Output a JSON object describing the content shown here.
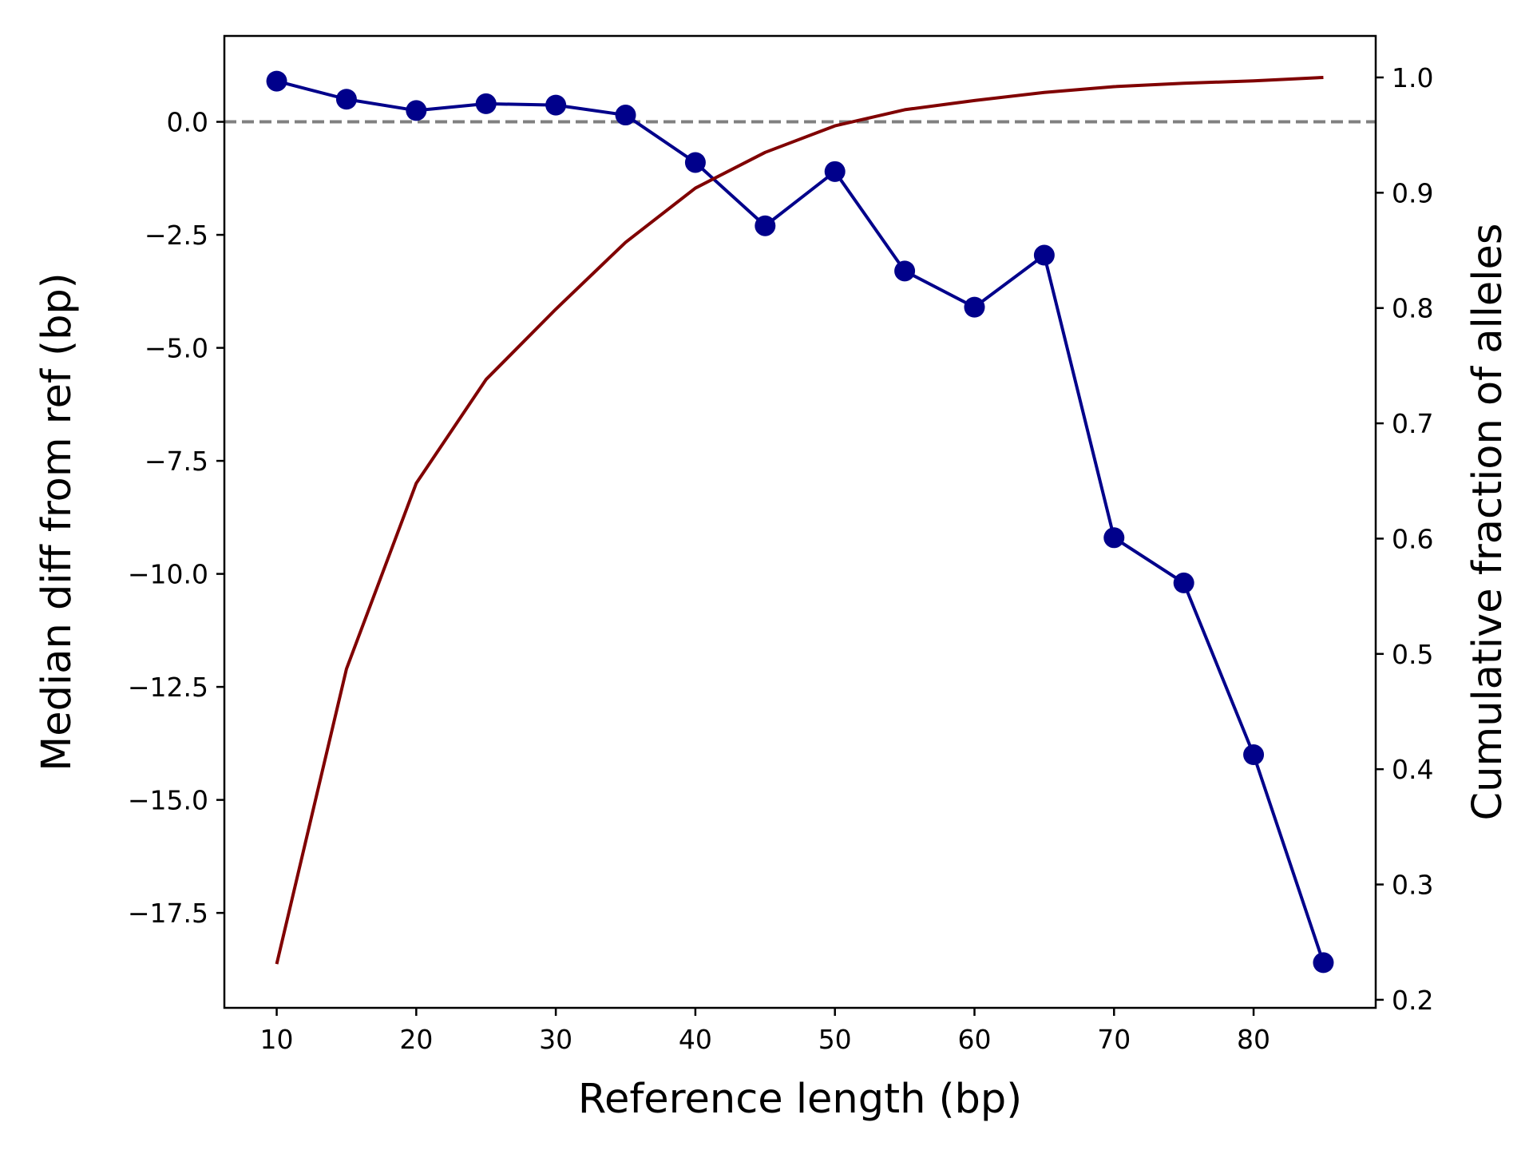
{
  "chart_data": {
    "type": "line",
    "title": "",
    "xlabel": "Reference length (bp)",
    "ylabel": "Median diff from ref (bp)",
    "y2label": "Cumulative fraction of alleles",
    "xlim": [
      6.25,
      88.75
    ],
    "ylim": [
      -19.6,
      1.9
    ],
    "y2lim": [
      0.193,
      1.036
    ],
    "x_ticks": [
      10,
      20,
      30,
      40,
      50,
      60,
      70,
      80
    ],
    "y_ticks": [
      0.0,
      -2.5,
      -5.0,
      -7.5,
      -10.0,
      -12.5,
      -15.0,
      -17.5
    ],
    "y2_ticks": [
      1.0,
      0.9,
      0.8,
      0.7,
      0.6,
      0.5,
      0.4,
      0.3,
      0.2
    ],
    "x_tick_labels": [
      "10",
      "20",
      "30",
      "40",
      "50",
      "60",
      "70",
      "80"
    ],
    "y_tick_labels": [
      "0.0",
      "−2.5",
      "−5.0",
      "−7.5",
      "−10.0",
      "−12.5",
      "−15.0",
      "−17.5"
    ],
    "y2_tick_labels": [
      "1.0",
      "0.9",
      "0.8",
      "0.7",
      "0.6",
      "0.5",
      "0.4",
      "0.3",
      "0.2"
    ],
    "grid": false,
    "reference_line": {
      "y": 0.0,
      "style": "dashed",
      "color": "#808080"
    },
    "series": [
      {
        "axis": "left",
        "marker": "circle",
        "color": "#00008b",
        "x": [
          10,
          15,
          20,
          25,
          30,
          35,
          40,
          45,
          50,
          55,
          60,
          65,
          70,
          75,
          80,
          85
        ],
        "y": [
          0.9,
          0.5,
          0.25,
          0.4,
          0.37,
          0.15,
          -0.9,
          -2.3,
          -1.1,
          -3.3,
          -4.1,
          -2.95,
          -9.2,
          -10.2,
          -14.0,
          -18.6
        ]
      },
      {
        "axis": "right",
        "marker": "none",
        "color": "#800000",
        "x": [
          10,
          15,
          20,
          25,
          30,
          35,
          40,
          45,
          50,
          55,
          60,
          65,
          70,
          75,
          80,
          85
        ],
        "y": [
          0.231,
          0.487,
          0.648,
          0.738,
          0.799,
          0.857,
          0.904,
          0.935,
          0.958,
          0.972,
          0.98,
          0.987,
          0.992,
          0.995,
          0.997,
          1.0
        ]
      }
    ]
  }
}
